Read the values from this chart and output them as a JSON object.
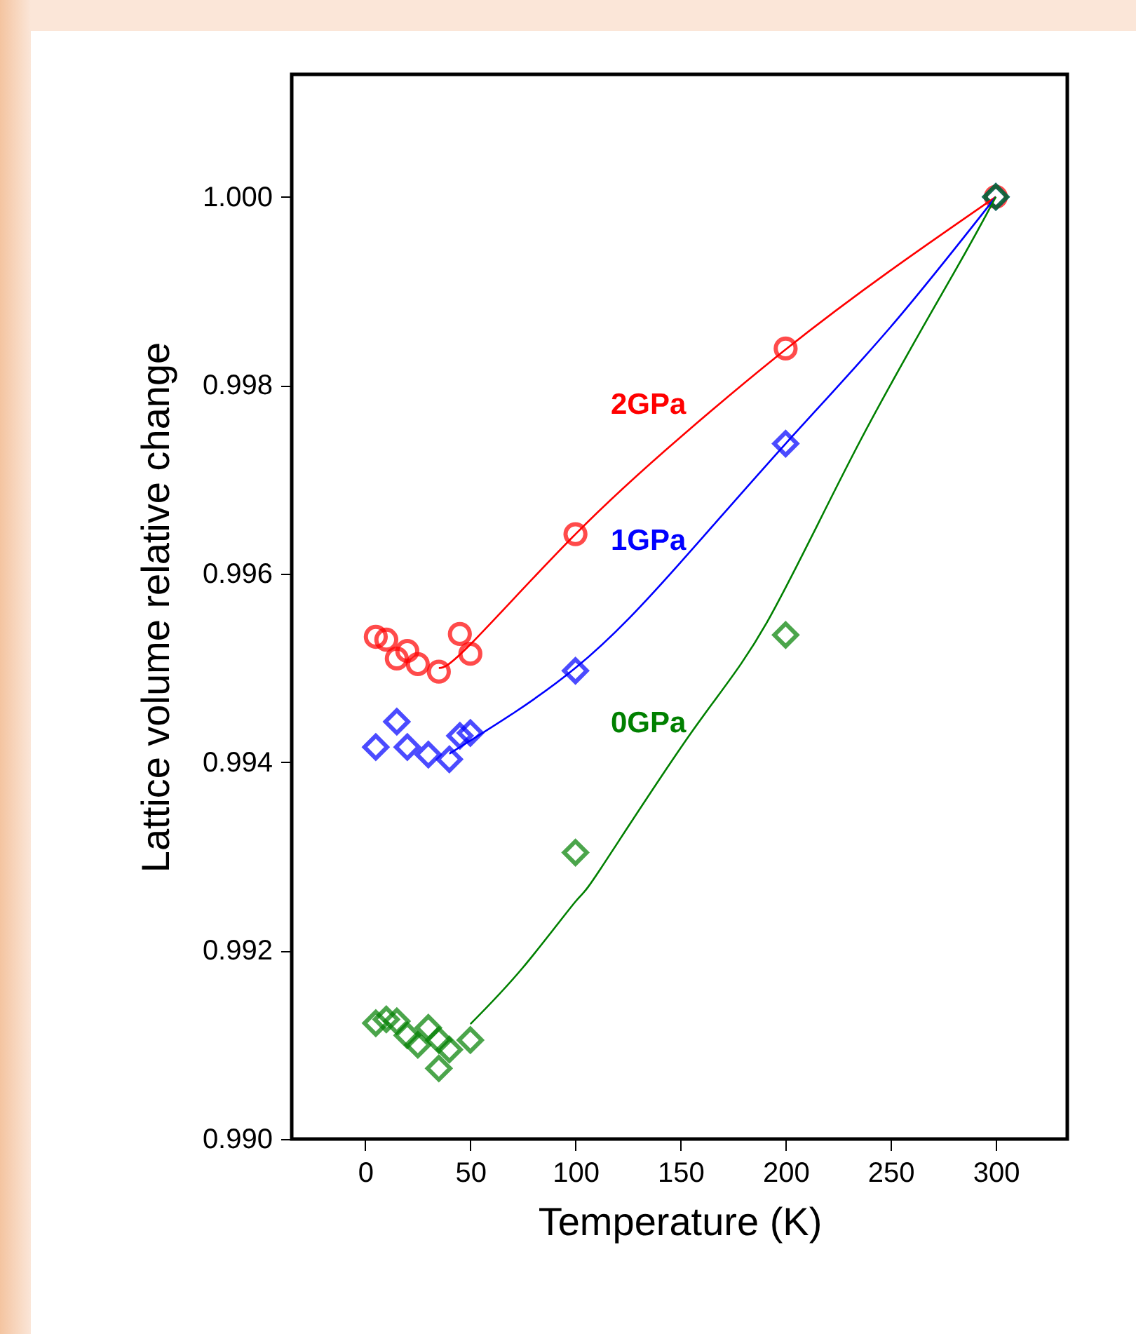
{
  "chart_data": {
    "type": "scatter",
    "xlabel": "Temperature (K)",
    "ylabel": "Lattice volume relative change",
    "xlim": [
      -35,
      334
    ],
    "xticks": [
      0,
      50,
      100,
      150,
      200,
      250,
      300
    ],
    "ylim": [
      0.99,
      1.0013
    ],
    "yticks": [
      {
        "value": 0.99,
        "label": "0.990"
      },
      0.992,
      0.994,
      0.996,
      0.998,
      {
        "value": 1.0,
        "label": "1.000"
      }
    ],
    "grid": false,
    "legend": false,
    "series": [
      {
        "name": "2GPa",
        "marker": "circle",
        "color": "#ff0000",
        "x": [
          5,
          10,
          15,
          20,
          25,
          35,
          45,
          50,
          100,
          200,
          300
        ],
        "values": [
          0.99533,
          0.9953,
          0.9951,
          0.99518,
          0.99504,
          0.99496,
          0.99536,
          0.99515,
          0.99642,
          0.99839,
          1.0
        ]
      },
      {
        "name": "1GPa",
        "marker": "diamond",
        "color": "#0000ff",
        "x": [
          5,
          15,
          20,
          30,
          40,
          45,
          50,
          100,
          200,
          300
        ],
        "values": [
          0.99416,
          0.99443,
          0.99416,
          0.99408,
          0.99403,
          0.99428,
          0.99431,
          0.99497,
          0.99738,
          1.0
        ]
      },
      {
        "name": "0GPa",
        "marker": "diamond",
        "color": "#008000",
        "x": [
          5,
          10,
          15,
          20,
          25,
          30,
          35,
          35,
          40,
          50,
          100,
          200,
          300
        ],
        "values": [
          0.99123,
          0.99127,
          0.99125,
          0.9911,
          0.991,
          0.99118,
          0.99105,
          0.99075,
          0.99095,
          0.99105,
          0.99304,
          0.99535,
          1.0
        ]
      },
      {
        "type": "line",
        "marker": "none",
        "line_style": "solid",
        "color": "#ff0000",
        "x": [
          35,
          50,
          100,
          150,
          200,
          250,
          300
        ],
        "values": [
          0.995,
          0.99525,
          0.99642,
          0.99745,
          0.99838,
          0.99922,
          1.0
        ]
      },
      {
        "type": "line",
        "marker": "none",
        "line_style": "solid",
        "color": "#0000ff",
        "x": [
          40,
          100,
          150,
          200,
          250,
          300
        ],
        "values": [
          0.99409,
          0.995,
          0.99612,
          0.99738,
          0.99862,
          1.0
        ]
      },
      {
        "type": "line",
        "marker": "none",
        "line_style": "solid",
        "color": "#008000",
        "x": [
          50,
          75,
          100,
          112,
          155,
          191,
          235,
          280,
          300
        ],
        "values": [
          0.99122,
          0.99182,
          0.99252,
          0.99287,
          0.99431,
          0.99548,
          0.99739,
          0.99919,
          1.0
        ]
      }
    ]
  }
}
